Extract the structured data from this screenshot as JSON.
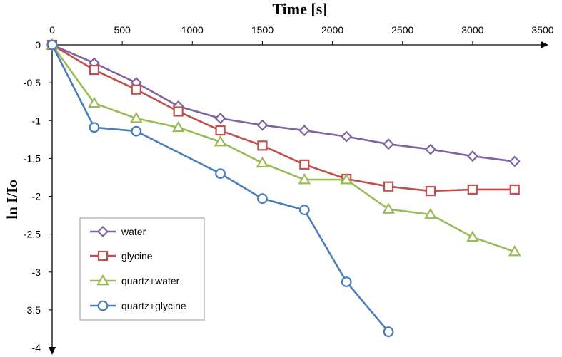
{
  "chart_data": {
    "type": "line",
    "title": "Time [s]",
    "xlabel": "Time [s]",
    "ylabel": "ln I/Io",
    "xlim": [
      0,
      3500
    ],
    "ylim": [
      -4,
      0
    ],
    "x_ticks": [
      "0",
      "500",
      "1000",
      "1500",
      "2000",
      "2500",
      "3000",
      "3500"
    ],
    "y_ticks": [
      "0",
      "-0,5",
      "-1",
      "-1,5",
      "-2",
      "-2,5",
      "-3",
      "-3,5",
      "-4"
    ],
    "x_axis_position": "top",
    "legend_position": "bottom-left",
    "grid": false,
    "series": [
      {
        "name": "water",
        "marker": "diamond",
        "color": "#8064a2",
        "x": [
          0,
          300,
          600,
          900,
          1200,
          1500,
          1800,
          2100,
          2400,
          2700,
          3000,
          3300
        ],
        "y": [
          0,
          -0.24,
          -0.5,
          -0.81,
          -0.97,
          -1.06,
          -1.13,
          -1.21,
          -1.31,
          -1.38,
          -1.47,
          -1.54
        ]
      },
      {
        "name": "glycine",
        "marker": "square",
        "color": "#c0504d",
        "x": [
          0,
          300,
          600,
          900,
          1200,
          1500,
          1800,
          2100,
          2400,
          2700,
          3000,
          3300
        ],
        "y": [
          0,
          -0.33,
          -0.59,
          -0.88,
          -1.13,
          -1.33,
          -1.58,
          -1.77,
          -1.87,
          -1.93,
          -1.91,
          -1.91
        ]
      },
      {
        "name": "quartz+water",
        "marker": "triangle",
        "color": "#9bbb59",
        "x": [
          0,
          300,
          600,
          900,
          1200,
          1500,
          1800,
          2100,
          2400,
          2700,
          3000,
          3300
        ],
        "y": [
          0,
          -0.77,
          -0.97,
          -1.09,
          -1.28,
          -1.56,
          -1.78,
          -1.78,
          -2.17,
          -2.24,
          -2.54,
          -2.73
        ]
      },
      {
        "name": "quartz+glycine",
        "marker": "circle",
        "color": "#4a7ebb",
        "x": [
          0,
          300,
          600,
          1200,
          1500,
          1800,
          2100,
          2400
        ],
        "y": [
          0,
          -1.09,
          -1.14,
          -1.7,
          -2.03,
          -2.18,
          -3.13,
          -3.79
        ]
      }
    ]
  }
}
